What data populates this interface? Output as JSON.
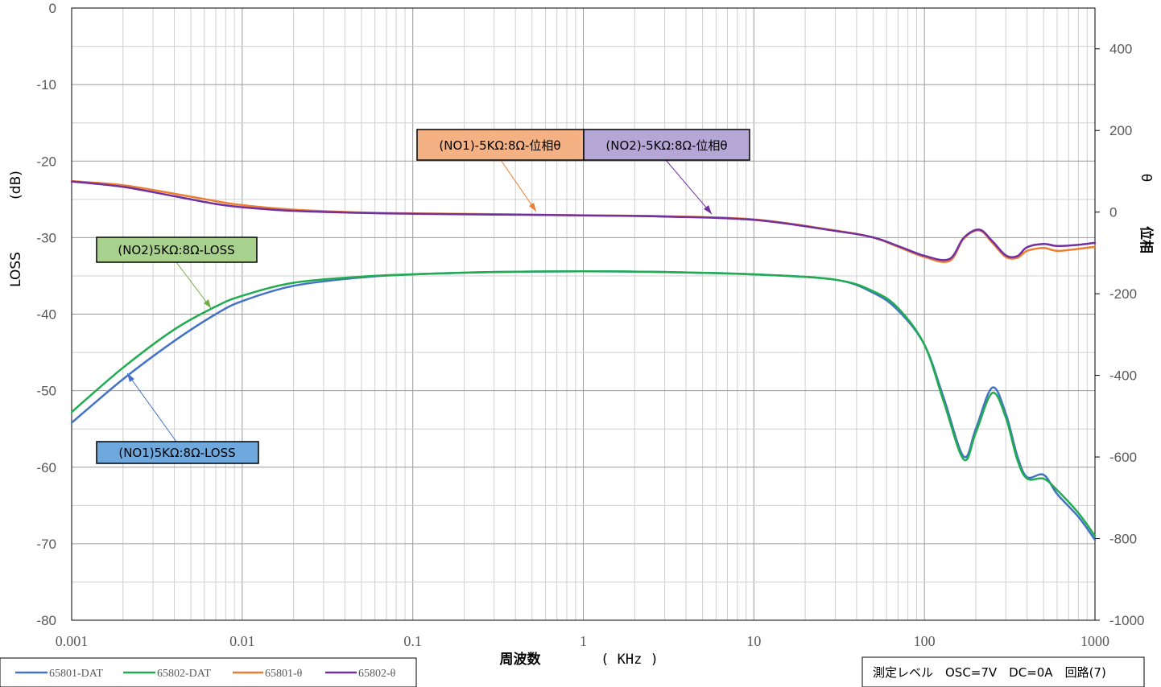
{
  "chart_data": {
    "type": "line",
    "xlabel": "周波数",
    "xunit": "( KHz )",
    "ylabel_left": "LOSS",
    "ylabel_left_unit": "(dB)",
    "ylabel_right": "位相",
    "ylabel_right_symbol": "θ",
    "x_scale": "log",
    "xlim": [
      0.001,
      1000
    ],
    "ylim_left": [
      -80,
      0
    ],
    "ylim_right": [
      -1000,
      500
    ],
    "x_ticks": [
      "0.001",
      "0.01",
      "0.1",
      "1",
      "10",
      "100",
      "1000"
    ],
    "y_ticks_left": [
      "0",
      "-10",
      "-20",
      "-30",
      "-40",
      "-50",
      "-60",
      "-70",
      "-80"
    ],
    "y_ticks_right": [
      "400",
      "200",
      "0",
      "-200",
      "-400",
      "-600",
      "-800",
      "-1000"
    ],
    "grid": true,
    "series": [
      {
        "name": "65801-DAT",
        "axis": "left",
        "color": "#4472C4",
        "x": [
          0.001,
          0.002,
          0.004,
          0.007,
          0.01,
          0.02,
          0.05,
          0.1,
          0.3,
          1,
          3,
          10,
          30,
          50,
          70,
          100,
          130,
          170,
          200,
          250,
          300,
          350,
          400,
          500,
          600,
          800,
          1000
        ],
        "y": [
          -54.2,
          -48.5,
          -43.5,
          -40,
          -38.3,
          -36.3,
          -35.2,
          -34.8,
          -34.5,
          -34.4,
          -34.5,
          -34.8,
          -35.5,
          -37.2,
          -39.5,
          -44,
          -51,
          -58.6,
          -55,
          -49.6,
          -53,
          -58.5,
          -61.3,
          -61,
          -63.5,
          -66.5,
          -69.5
        ]
      },
      {
        "name": "65802-DAT",
        "axis": "left",
        "color": "#1FAD50",
        "x": [
          0.001,
          0.002,
          0.004,
          0.007,
          0.01,
          0.02,
          0.05,
          0.1,
          0.3,
          1,
          3,
          10,
          30,
          50,
          70,
          100,
          130,
          170,
          200,
          250,
          300,
          350,
          400,
          500,
          600,
          800,
          1000
        ],
        "y": [
          -52.8,
          -47,
          -42,
          -39,
          -37.6,
          -35.9,
          -35.1,
          -34.8,
          -34.5,
          -34.4,
          -34.5,
          -34.8,
          -35.5,
          -37,
          -39.2,
          -44,
          -51.5,
          -59,
          -55.5,
          -50.3,
          -53.5,
          -59,
          -61.5,
          -61.5,
          -63,
          -66,
          -69
        ]
      },
      {
        "name": "65801-θ",
        "axis": "right",
        "color": "#ED7D31",
        "x": [
          0.001,
          0.002,
          0.004,
          0.007,
          0.01,
          0.02,
          0.05,
          0.1,
          0.3,
          1,
          3,
          10,
          30,
          50,
          70,
          100,
          140,
          170,
          210,
          250,
          300,
          350,
          400,
          500,
          600,
          800,
          1000
        ],
        "y": [
          76,
          66,
          45,
          27,
          17,
          6,
          -1,
          -3,
          -5,
          -8,
          -10,
          -18,
          -45,
          -62,
          -85,
          -110,
          -120,
          -65,
          -45,
          -75,
          -110,
          -112,
          -95,
          -88,
          -95,
          -90,
          -85
        ]
      },
      {
        "name": "65802-θ",
        "axis": "right",
        "color": "#7030A0",
        "x": [
          0.001,
          0.002,
          0.004,
          0.007,
          0.01,
          0.02,
          0.05,
          0.1,
          0.3,
          1,
          3,
          10,
          30,
          50,
          70,
          100,
          140,
          170,
          210,
          250,
          300,
          350,
          400,
          500,
          600,
          800,
          1000
        ],
        "y": [
          75,
          62,
          39,
          20,
          12,
          3,
          -2,
          -4,
          -6,
          -8,
          -11,
          -19,
          -46,
          -62,
          -83,
          -107,
          -115,
          -63,
          -43,
          -71,
          -106,
          -108,
          -86,
          -78,
          -83,
          -80,
          -75
        ]
      }
    ],
    "annotations": [
      {
        "text": "(NO1)-5KΩ:8Ω-位相θ",
        "fill": "#F4B183",
        "stroke": "#ED7D31"
      },
      {
        "text": "(NO2)-5KΩ:8Ω-位相θ",
        "fill": "#B4A7D6",
        "stroke": "#7030A0"
      },
      {
        "text": "(NO2)5KΩ:8Ω-LOSS",
        "fill": "#A9D18E",
        "stroke": "#70AD47"
      },
      {
        "text": "(NO1)5KΩ:8Ω-LOSS",
        "fill": "#6FA8DC",
        "stroke": "#4472C4"
      }
    ],
    "note": "測定レベル　OSC=7V　DC=0A　回路(7)",
    "legend": [
      "65801-DAT",
      "65802-DAT",
      "65801-θ",
      "65802-θ"
    ]
  }
}
